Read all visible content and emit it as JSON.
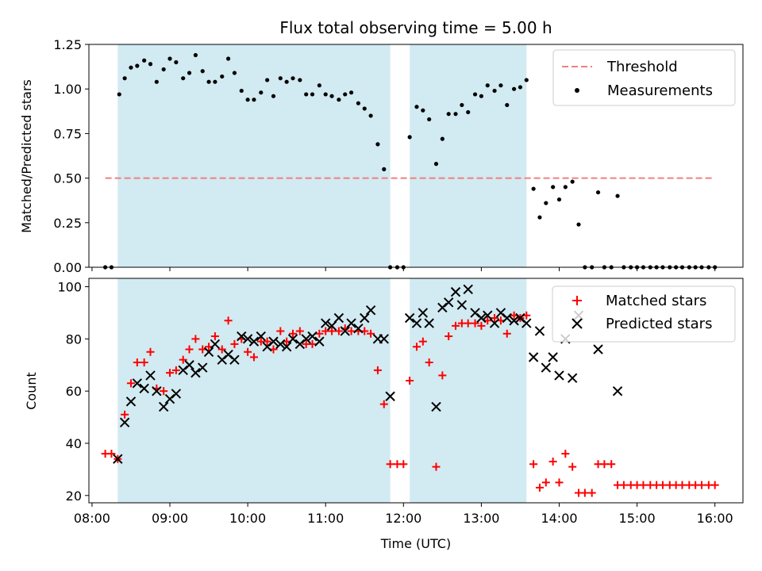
{
  "chart_data": {
    "type": "scatter",
    "title": "Flux total observing time = 5.00 h",
    "xlabel": "Time (UTC)",
    "x_range_hours": [
      7.96,
      16.36
    ],
    "x_ticks": [
      {
        "value": 8,
        "label": "08:00"
      },
      {
        "value": 9,
        "label": "09:00"
      },
      {
        "value": 10,
        "label": "10:00"
      },
      {
        "value": 11,
        "label": "11:00"
      },
      {
        "value": 12,
        "label": "12:00"
      },
      {
        "value": 13,
        "label": "13:00"
      },
      {
        "value": 14,
        "label": "14:00"
      },
      {
        "value": 15,
        "label": "15:00"
      },
      {
        "value": 16,
        "label": "16:00"
      }
    ],
    "shaded_intervals_hours": [
      [
        8.33,
        11.83
      ],
      [
        12.08,
        13.58
      ]
    ],
    "shade_color": "#add8e6",
    "panels": [
      {
        "id": "ratio",
        "ylabel": "Matched/Predicted stars",
        "ylim": [
          0,
          1.25
        ],
        "y_ticks": [
          {
            "value": 0,
            "label": "0.00"
          },
          {
            "value": 0.25,
            "label": "0.25"
          },
          {
            "value": 0.5,
            "label": "0.50"
          },
          {
            "value": 0.75,
            "label": "0.75"
          },
          {
            "value": 1.0,
            "label": "1.00"
          },
          {
            "value": 1.25,
            "label": "1.25"
          }
        ],
        "threshold": {
          "name": "Threshold",
          "value": 0.5,
          "x_range": [
            8.17,
            16.0
          ],
          "color": "#f08080"
        },
        "series": [
          {
            "name": "Measurements",
            "marker": "dot",
            "color": "#000000",
            "x": [
              8.17,
              8.25,
              8.35,
              8.42,
              8.5,
              8.58,
              8.67,
              8.75,
              8.83,
              8.92,
              9.0,
              9.08,
              9.17,
              9.25,
              9.33,
              9.42,
              9.5,
              9.58,
              9.67,
              9.75,
              9.83,
              9.92,
              10.0,
              10.08,
              10.17,
              10.25,
              10.33,
              10.42,
              10.5,
              10.58,
              10.67,
              10.75,
              10.83,
              10.92,
              11.0,
              11.08,
              11.17,
              11.25,
              11.33,
              11.42,
              11.5,
              11.58,
              11.67,
              11.75,
              11.83,
              11.92,
              12.0,
              12.08,
              12.17,
              12.25,
              12.33,
              12.42,
              12.5,
              12.58,
              12.67,
              12.75,
              12.83,
              12.92,
              13.0,
              13.08,
              13.17,
              13.25,
              13.33,
              13.42,
              13.5,
              13.58,
              13.67,
              13.75,
              13.83,
              13.92,
              14.0,
              14.08,
              14.17,
              14.25,
              14.33,
              14.42,
              14.5,
              14.58,
              14.67,
              14.75,
              14.83,
              14.92,
              15.0,
              15.08,
              15.17,
              15.25,
              15.33,
              15.42,
              15.5,
              15.58,
              15.67,
              15.75,
              15.83,
              15.92,
              16.0
            ],
            "y": [
              0,
              0,
              0.97,
              1.06,
              1.12,
              1.13,
              1.16,
              1.14,
              1.04,
              1.11,
              1.17,
              1.15,
              1.06,
              1.09,
              1.19,
              1.1,
              1.04,
              1.04,
              1.07,
              1.17,
              1.09,
              0.99,
              0.94,
              0.94,
              0.98,
              1.05,
              0.96,
              1.06,
              1.04,
              1.06,
              1.05,
              0.97,
              0.97,
              1.02,
              0.97,
              0.96,
              0.94,
              0.97,
              0.98,
              0.92,
              0.89,
              0.85,
              0.69,
              0.55,
              0,
              0,
              0,
              0.73,
              0.9,
              0.88,
              0.83,
              0.58,
              0.72,
              0.86,
              0.86,
              0.91,
              0.87,
              0.97,
              0.96,
              1.02,
              0.99,
              1.02,
              0.91,
              1.0,
              1.01,
              1.05,
              0.44,
              0.28,
              0.36,
              0.45,
              0.38,
              0.45,
              0.48,
              0.24,
              0,
              0,
              0.42,
              0,
              0,
              0.4,
              0,
              0,
              0,
              0,
              0,
              0,
              0,
              0,
              0,
              0,
              0,
              0,
              0,
              0,
              0
            ]
          }
        ],
        "legend": [
          {
            "label": "Threshold",
            "marker": "dashed-line"
          },
          {
            "label": "Measurements",
            "marker": "dot"
          }
        ]
      },
      {
        "id": "counts",
        "ylabel": "Count",
        "ylim": [
          17.2,
          103.2
        ],
        "y_ticks": [
          {
            "value": 20,
            "label": "20"
          },
          {
            "value": 40,
            "label": "40"
          },
          {
            "value": 60,
            "label": "60"
          },
          {
            "value": 80,
            "label": "80"
          },
          {
            "value": 100,
            "label": "100"
          }
        ],
        "series": [
          {
            "name": "Matched stars",
            "marker": "plus",
            "color": "#ff0000",
            "x": [
              8.17,
              8.25,
              8.33,
              8.42,
              8.5,
              8.58,
              8.67,
              8.75,
              8.83,
              8.92,
              9.0,
              9.08,
              9.17,
              9.25,
              9.33,
              9.42,
              9.5,
              9.58,
              9.67,
              9.75,
              9.83,
              9.92,
              10.0,
              10.08,
              10.17,
              10.25,
              10.33,
              10.42,
              10.5,
              10.58,
              10.67,
              10.75,
              10.83,
              10.92,
              11.0,
              11.08,
              11.17,
              11.25,
              11.33,
              11.42,
              11.5,
              11.58,
              11.67,
              11.75,
              11.83,
              11.92,
              12.0,
              12.08,
              12.17,
              12.25,
              12.33,
              12.42,
              12.5,
              12.58,
              12.67,
              12.75,
              12.83,
              12.92,
              13.0,
              13.08,
              13.17,
              13.25,
              13.33,
              13.42,
              13.5,
              13.58,
              13.67,
              13.75,
              13.83,
              13.92,
              14.0,
              14.08,
              14.17,
              14.25,
              14.33,
              14.42,
              14.5,
              14.58,
              14.67,
              14.75,
              14.83,
              14.92,
              15.0,
              15.08,
              15.17,
              15.25,
              15.33,
              15.42,
              15.5,
              15.58,
              15.67,
              15.75,
              15.83,
              15.92,
              16.0
            ],
            "y": [
              36,
              36,
              34,
              51,
              63,
              71,
              71,
              75,
              61,
              60,
              67,
              68,
              72,
              76,
              80,
              76,
              77,
              81,
              76,
              87,
              78,
              80,
              75,
              73,
              79,
              79,
              76,
              83,
              79,
              82,
              83,
              78,
              78,
              82,
              83,
              83,
              83,
              84,
              83,
              83,
              83,
              82,
              68,
              55,
              32,
              32,
              32,
              64,
              77,
              79,
              71,
              31,
              66,
              81,
              85,
              86,
              86,
              86,
              85,
              87,
              88,
              87,
              82,
              89,
              88,
              89,
              32,
              23,
              25,
              33,
              25,
              36,
              31,
              21,
              21,
              21,
              32,
              32,
              32,
              24,
              24,
              24,
              24,
              24,
              24,
              24,
              24,
              24,
              24,
              24,
              24,
              24,
              24,
              24,
              24
            ]
          },
          {
            "name": "Predicted stars",
            "marker": "x",
            "color": "#000000",
            "x": [
              8.33,
              8.42,
              8.5,
              8.58,
              8.67,
              8.75,
              8.83,
              8.92,
              9.0,
              9.08,
              9.17,
              9.25,
              9.33,
              9.42,
              9.5,
              9.58,
              9.67,
              9.75,
              9.83,
              9.92,
              10.0,
              10.08,
              10.17,
              10.25,
              10.33,
              10.42,
              10.5,
              10.58,
              10.67,
              10.75,
              10.83,
              10.92,
              11.0,
              11.08,
              11.17,
              11.25,
              11.33,
              11.42,
              11.5,
              11.58,
              11.67,
              11.75,
              11.83,
              12.08,
              12.17,
              12.25,
              12.33,
              12.42,
              12.5,
              12.58,
              12.67,
              12.75,
              12.83,
              12.92,
              13.0,
              13.08,
              13.17,
              13.25,
              13.33,
              13.42,
              13.5,
              13.58,
              13.67,
              13.75,
              13.83,
              13.92,
              14.0,
              14.08,
              14.17,
              14.25,
              14.5,
              14.75
            ],
            "y": [
              34,
              48,
              56,
              63,
              61,
              66,
              60,
              54,
              57,
              59,
              68,
              70,
              67,
              69,
              75,
              78,
              72,
              74,
              72,
              81,
              80,
              79,
              81,
              77,
              79,
              78,
              77,
              80,
              78,
              80,
              81,
              79,
              86,
              85,
              88,
              83,
              86,
              84,
              88,
              91,
              80,
              80,
              58,
              88,
              86,
              90,
              86,
              54,
              92,
              94,
              98,
              93,
              99,
              90,
              88,
              89,
              86,
              90,
              88,
              87,
              88,
              86,
              73,
              83,
              69,
              73,
              66,
              80,
              65,
              89,
              76,
              60
            ]
          }
        ],
        "legend": [
          {
            "label": "Matched stars",
            "marker": "plus"
          },
          {
            "label": "Predicted stars",
            "marker": "x"
          }
        ]
      }
    ]
  }
}
